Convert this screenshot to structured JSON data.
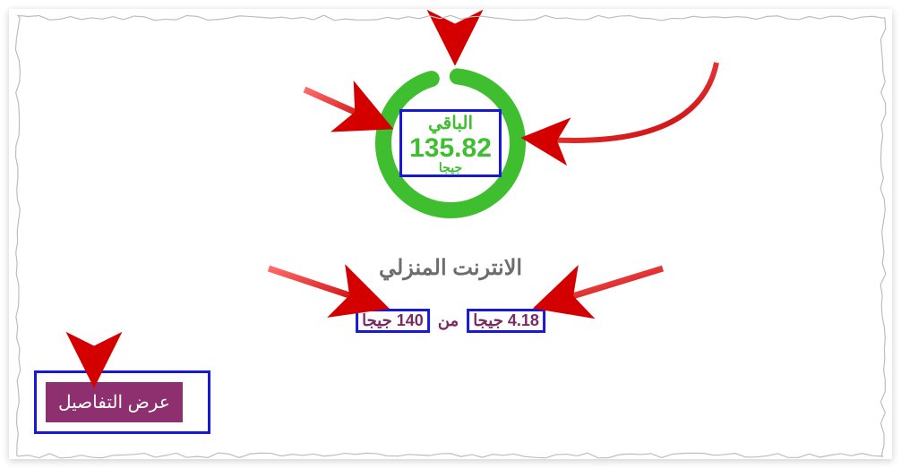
{
  "ring": {
    "remaining_label": "الباقي",
    "remaining_value": "135.82",
    "remaining_unit": "جيجا",
    "progress_pct": 97,
    "stroke_color": "#3fbf2f",
    "stroke_width": 18,
    "radius": 75,
    "gap_deg": 12,
    "start_deg": -84
  },
  "plan": {
    "title": "الانترنت المنزلي",
    "title_color": "#6d6d6d"
  },
  "usage": {
    "used_value": "4.18",
    "unit": "جيجا",
    "of_word": "من",
    "total_value": "140",
    "text_color": "#7a2a63"
  },
  "button": {
    "label": "عرض التفاصيل",
    "bg_color": "#8e2f70",
    "fg_color": "#ffffff"
  },
  "highlight_border_color": "#1818d8",
  "annotation_arrow_color_start": "#ff4a4a",
  "annotation_arrow_color_end": "#c60000"
}
